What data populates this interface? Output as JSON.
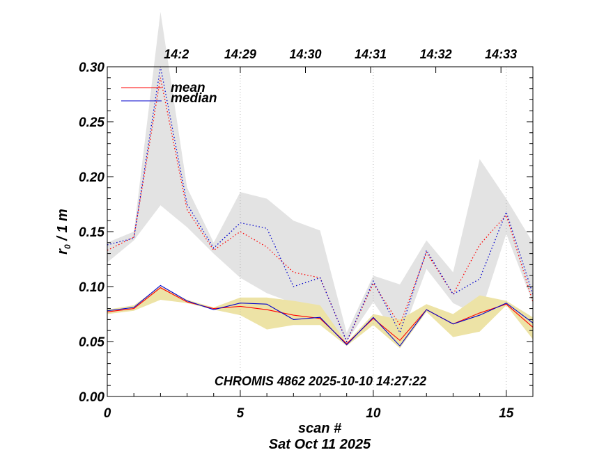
{
  "chart_data": {
    "type": "line",
    "annotation": "CHROMIS 4862 2025-10-10 14:27:22",
    "xlabel": "scan #",
    "date_label": "Sat Oct 11 2025",
    "ylabel_main": "r",
    "ylabel_sub": "0",
    "ylabel_rest": " / 1 m",
    "xlim": [
      0,
      16
    ],
    "ylim": [
      0,
      0.3
    ],
    "x_ticks": [
      0,
      5,
      10,
      15
    ],
    "x_tick_labels": [
      "0",
      "5",
      "10",
      "15"
    ],
    "y_ticks": [
      0,
      0.05,
      0.1,
      0.15,
      0.2,
      0.25,
      0.3
    ],
    "y_tick_labels": [
      "0.00",
      "0.05",
      "0.10",
      "0.15",
      "0.20",
      "0.25",
      "0.30"
    ],
    "top_axis": {
      "positions": [
        2.6,
        5.0,
        7.45,
        9.9,
        12.35,
        14.8
      ],
      "labels": [
        "14:2",
        "14:29",
        "14:30",
        "14:31",
        "14:32",
        "14:33"
      ]
    },
    "vertical_gridlines": [
      5,
      10,
      15
    ],
    "x": [
      0,
      1,
      2,
      3,
      4,
      5,
      6,
      7,
      8,
      9,
      10,
      11,
      12,
      13,
      14,
      15,
      16
    ],
    "legend": [
      {
        "name": "mean",
        "color": "#ff0000"
      },
      {
        "name": "median",
        "color": "#0000cc"
      }
    ],
    "series": [
      {
        "name": "mean (upper)",
        "color": "#ff0000",
        "style": "dotted",
        "values": [
          0.133,
          0.145,
          0.29,
          0.17,
          0.133,
          0.15,
          0.136,
          0.113,
          0.108,
          0.05,
          0.103,
          0.065,
          0.131,
          0.093,
          0.138,
          0.165,
          0.086
        ]
      },
      {
        "name": "median (upper)",
        "color": "#0000cc",
        "style": "dotted",
        "values": [
          0.138,
          0.144,
          0.3,
          0.175,
          0.135,
          0.158,
          0.153,
          0.1,
          0.108,
          0.05,
          0.105,
          0.058,
          0.133,
          0.093,
          0.107,
          0.168,
          0.093
        ]
      },
      {
        "name": "mean",
        "color": "#ff0000",
        "style": "solid",
        "values": [
          0.077,
          0.08,
          0.099,
          0.086,
          0.08,
          0.082,
          0.079,
          0.074,
          0.071,
          0.048,
          0.071,
          0.051,
          0.079,
          0.066,
          0.076,
          0.084,
          0.063
        ]
      },
      {
        "name": "median",
        "color": "#0000cc",
        "style": "solid",
        "values": [
          0.078,
          0.081,
          0.101,
          0.087,
          0.079,
          0.085,
          0.084,
          0.07,
          0.072,
          0.047,
          0.072,
          0.046,
          0.079,
          0.066,
          0.074,
          0.085,
          0.067
        ]
      }
    ],
    "bands": [
      {
        "name": "upper spread",
        "color": "#e3e3e3",
        "upper": [
          0.14,
          0.15,
          0.35,
          0.19,
          0.14,
          0.186,
          0.18,
          0.16,
          0.151,
          0.058,
          0.11,
          0.102,
          0.142,
          0.113,
          0.216,
          0.18,
          0.14
        ],
        "lower": [
          0.122,
          0.142,
          0.174,
          0.154,
          0.13,
          0.108,
          0.094,
          0.085,
          0.075,
          0.05,
          0.086,
          0.051,
          0.116,
          0.085,
          0.073,
          0.148,
          0.085
        ]
      },
      {
        "name": "lower spread",
        "color": "#ede3a6",
        "upper": [
          0.079,
          0.083,
          0.1,
          0.088,
          0.081,
          0.09,
          0.09,
          0.087,
          0.083,
          0.049,
          0.075,
          0.07,
          0.084,
          0.075,
          0.092,
          0.087,
          0.072
        ]
      },
      {
        "name": "lower spread base",
        "color": "#ede3a6",
        "lower": [
          0.075,
          0.078,
          0.088,
          0.085,
          0.079,
          0.074,
          0.061,
          0.065,
          0.065,
          0.046,
          0.065,
          0.044,
          0.077,
          0.054,
          0.059,
          0.083,
          0.052
        ]
      }
    ]
  }
}
